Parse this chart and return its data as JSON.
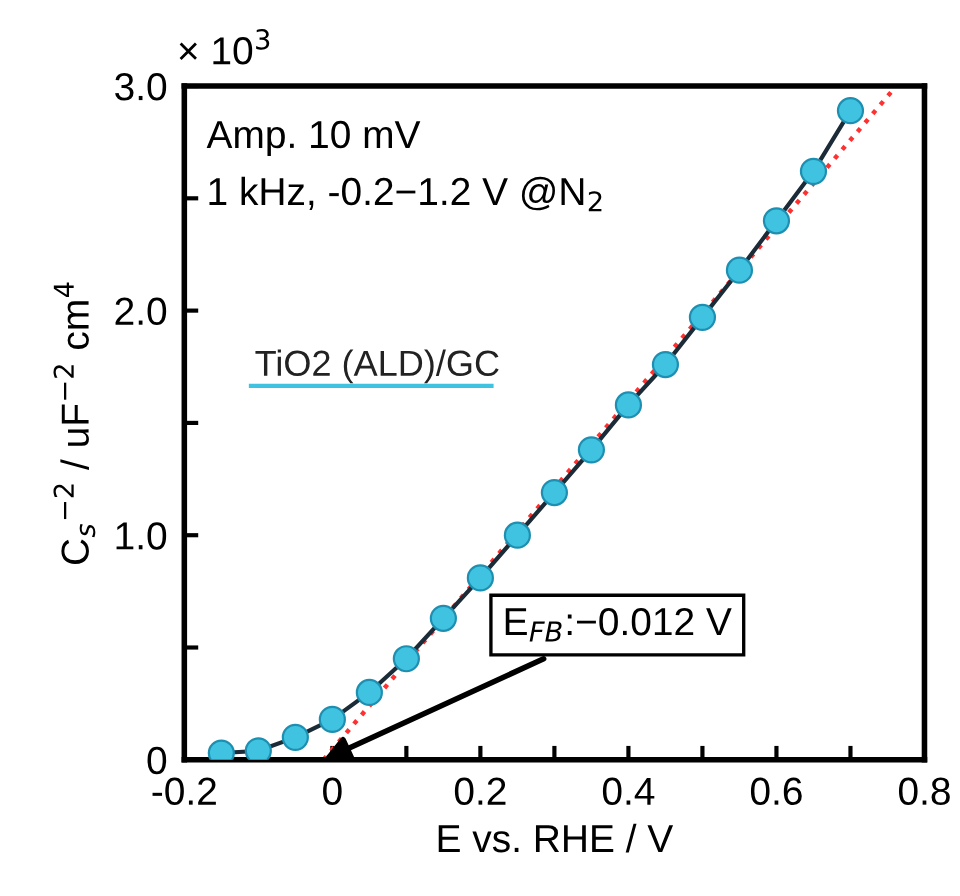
{
  "chart_data": {
    "type": "line",
    "xlabel": "E vs. RHE / V",
    "ylabel": "C$_{s}$$^{−2}$ / uF$^{−2}$ cm$^{4}$",
    "series": [
      {
        "name": "TiO2 (ALD)/GC",
        "color": "#3fc3e0",
        "marker": "circle",
        "line_style": "solid",
        "x": [
          -0.15,
          -0.1,
          -0.05,
          0,
          0.05,
          0.1,
          0.15,
          0.2,
          0.25,
          0.3,
          0.35,
          0.4,
          0.45,
          0.5,
          0.55,
          0.6,
          0.65,
          0.7
        ],
        "values": [
          0.03,
          0.04,
          0.1,
          0.18,
          0.3,
          0.45,
          0.63,
          0.81,
          1.0,
          1.19,
          1.38,
          1.58,
          1.76,
          1.97,
          2.18,
          2.4,
          2.62,
          2.89
        ]
      },
      {
        "type": "line",
        "color": "#ff3030",
        "marker": "none",
        "line_style": "dotted",
        "x": [
          -0.012,
          0.762
        ],
        "values": [
          0,
          3.0
        ]
      }
    ],
    "xlim": [
      -0.2,
      0.8
    ],
    "ylim": [
      0,
      3.0
    ],
    "xticks": [
      -0.2,
      {
        "value": -0.1,
        "label": null
      },
      0,
      {
        "value": 0.1,
        "label": null
      },
      0.2,
      {
        "value": 0.3,
        "label": null
      },
      0.4,
      {
        "value": 0.5,
        "label": null
      },
      0.6,
      {
        "value": 0.7,
        "label": null
      },
      0.8
    ],
    "yticks": [
      0,
      {
        "value": 0.5,
        "label": null
      },
      {
        "value": 1,
        "label": "1.0"
      },
      {
        "value": 1.5,
        "label": null
      },
      {
        "value": 2,
        "label": "2.0"
      },
      {
        "value": 2.5,
        "label": null
      },
      {
        "value": 3,
        "label": "3.0"
      }
    ],
    "annotations": [
      "× 10$^{3}$",
      "Amp. 10 mV",
      "1 kHz, -0.2−1.2 V @N$_{2}$",
      {
        "text": "E$_{FB}$:−0.012 V",
        "x": -0.012,
        "y": 0
      }
    ],
    "grid": false
  }
}
